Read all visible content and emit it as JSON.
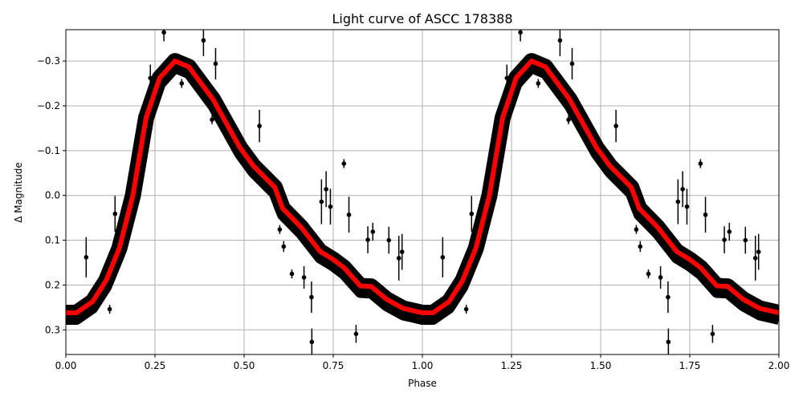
{
  "chart_data": {
    "type": "scatter",
    "title": "Light curve of ASCC 178388",
    "xlabel": "Phase",
    "ylabel": "Δ Magnitude",
    "xlim": [
      0.0,
      2.0
    ],
    "ylim": [
      0.355,
      -0.37
    ],
    "y_inverted": true,
    "grid": true,
    "x_ticks": [
      "0.00",
      "0.25",
      "0.50",
      "0.75",
      "1.00",
      "1.25",
      "1.50",
      "1.75",
      "2.00"
    ],
    "x_tick_values": [
      0,
      0.25,
      0.5,
      0.75,
      1.0,
      1.25,
      1.5,
      1.75,
      2.0
    ],
    "y_ticks": [
      "−0.3",
      "−0.2",
      "−0.1",
      "0.0",
      "0.1",
      "0.2",
      "0.3"
    ],
    "y_tick_values": [
      -0.3,
      -0.2,
      -0.1,
      0.0,
      0.1,
      0.2,
      0.3
    ],
    "cycles_shown": 2,
    "colors": {
      "data": "#000000",
      "model": "#ff0000",
      "grid": "#b0b0b0"
    },
    "model_curve": {
      "phase": [
        0.0,
        0.03,
        0.075,
        0.113,
        0.15,
        0.188,
        0.225,
        0.263,
        0.306,
        0.345,
        0.413,
        0.488,
        0.526,
        0.586,
        0.608,
        0.66,
        0.713,
        0.75,
        0.78,
        0.826,
        0.856,
        0.9,
        0.946,
        1.0
      ],
      "magnitude": [
        0.262,
        0.262,
        0.237,
        0.19,
        0.118,
        0.0,
        -0.173,
        -0.262,
        -0.3,
        -0.287,
        -0.214,
        -0.107,
        -0.066,
        -0.018,
        0.029,
        0.071,
        0.125,
        0.143,
        0.161,
        0.202,
        0.203,
        0.232,
        0.252,
        0.262
      ]
    },
    "outliers": [
      {
        "phase": 0.275,
        "mag": -0.364,
        "err": 0.02
      },
      {
        "phase": 0.386,
        "mag": -0.346,
        "err": 0.035
      },
      {
        "phase": 0.42,
        "mag": -0.294,
        "err": 0.035
      },
      {
        "phase": 0.237,
        "mag": -0.262,
        "err": 0.03
      },
      {
        "phase": 0.325,
        "mag": -0.25,
        "err": 0.01
      },
      {
        "phase": 0.41,
        "mag": -0.169,
        "err": 0.01
      },
      {
        "phase": 0.543,
        "mag": -0.155,
        "err": 0.036
      },
      {
        "phase": 0.78,
        "mag": -0.071,
        "err": 0.01
      },
      {
        "phase": 0.73,
        "mag": -0.014,
        "err": 0.04
      },
      {
        "phase": 0.717,
        "mag": 0.014,
        "err": 0.05
      },
      {
        "phase": 0.742,
        "mag": 0.025,
        "err": 0.04
      },
      {
        "phase": 0.794,
        "mag": 0.043,
        "err": 0.04
      },
      {
        "phase": 0.138,
        "mag": 0.041,
        "err": 0.04
      },
      {
        "phase": 0.057,
        "mag": 0.138,
        "err": 0.045
      },
      {
        "phase": 0.847,
        "mag": 0.099,
        "err": 0.03
      },
      {
        "phase": 0.861,
        "mag": 0.081,
        "err": 0.02
      },
      {
        "phase": 0.906,
        "mag": 0.1,
        "err": 0.03
      },
      {
        "phase": 0.934,
        "mag": 0.14,
        "err": 0.05
      },
      {
        "phase": 0.943,
        "mag": 0.126,
        "err": 0.04
      },
      {
        "phase": 0.634,
        "mag": 0.175,
        "err": 0.01
      },
      {
        "phase": 0.668,
        "mag": 0.183,
        "err": 0.025
      },
      {
        "phase": 0.689,
        "mag": 0.227,
        "err": 0.035
      },
      {
        "phase": 0.814,
        "mag": 0.309,
        "err": 0.02
      },
      {
        "phase": 0.611,
        "mag": 0.114,
        "err": 0.012
      },
      {
        "phase": 0.123,
        "mag": 0.254,
        "err": 0.01
      },
      {
        "phase": 0.6,
        "mag": 0.076,
        "err": 0.01
      },
      {
        "phase": 0.69,
        "mag": 0.327,
        "err": 0.03
      }
    ]
  }
}
